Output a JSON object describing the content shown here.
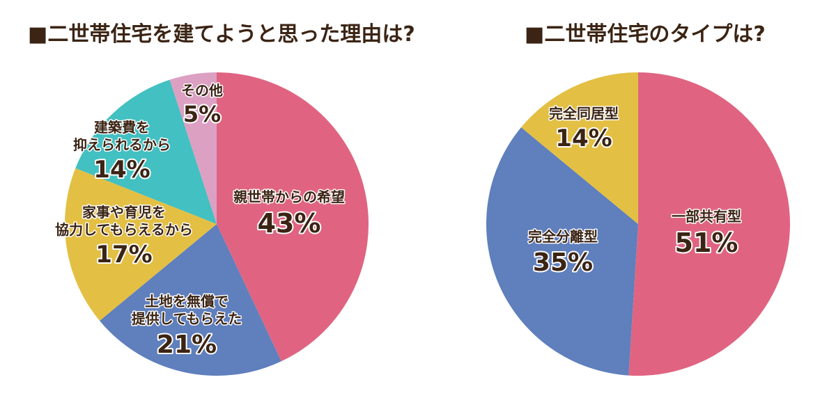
{
  "chart_data": [
    {
      "type": "pie",
      "title": "■二世帯住宅を建てようと思った理由は?",
      "slices": [
        {
          "label_lines": [
            "親世帯からの希望"
          ],
          "value": 43,
          "value_label": "43%",
          "color": "#e06481"
        },
        {
          "label_lines": [
            "土地を無償で",
            "提供してもらえた"
          ],
          "value": 21,
          "value_label": "21%",
          "color": "#5f7fbd"
        },
        {
          "label_lines": [
            "家事や育児を",
            "協力してもらえるから"
          ],
          "value": 17,
          "value_label": "17%",
          "color": "#e3bf44"
        },
        {
          "label_lines": [
            "建築費を",
            "抑えられるから"
          ],
          "value": 14,
          "value_label": "14%",
          "color": "#43c0c1"
        },
        {
          "label_lines": [
            "その他"
          ],
          "value": 5,
          "value_label": "5%",
          "color": "#dca0c3"
        }
      ]
    },
    {
      "type": "pie",
      "title": "■二世帯住宅のタイプは?",
      "slices": [
        {
          "label_lines": [
            "一部共有型"
          ],
          "value": 51,
          "value_label": "51%",
          "color": "#e06481"
        },
        {
          "label_lines": [
            "完全分離型"
          ],
          "value": 35,
          "value_label": "35%",
          "color": "#5f7fbd"
        },
        {
          "label_lines": [
            "完全同居型"
          ],
          "value": 14,
          "value_label": "14%",
          "color": "#e3bf44"
        }
      ]
    }
  ]
}
